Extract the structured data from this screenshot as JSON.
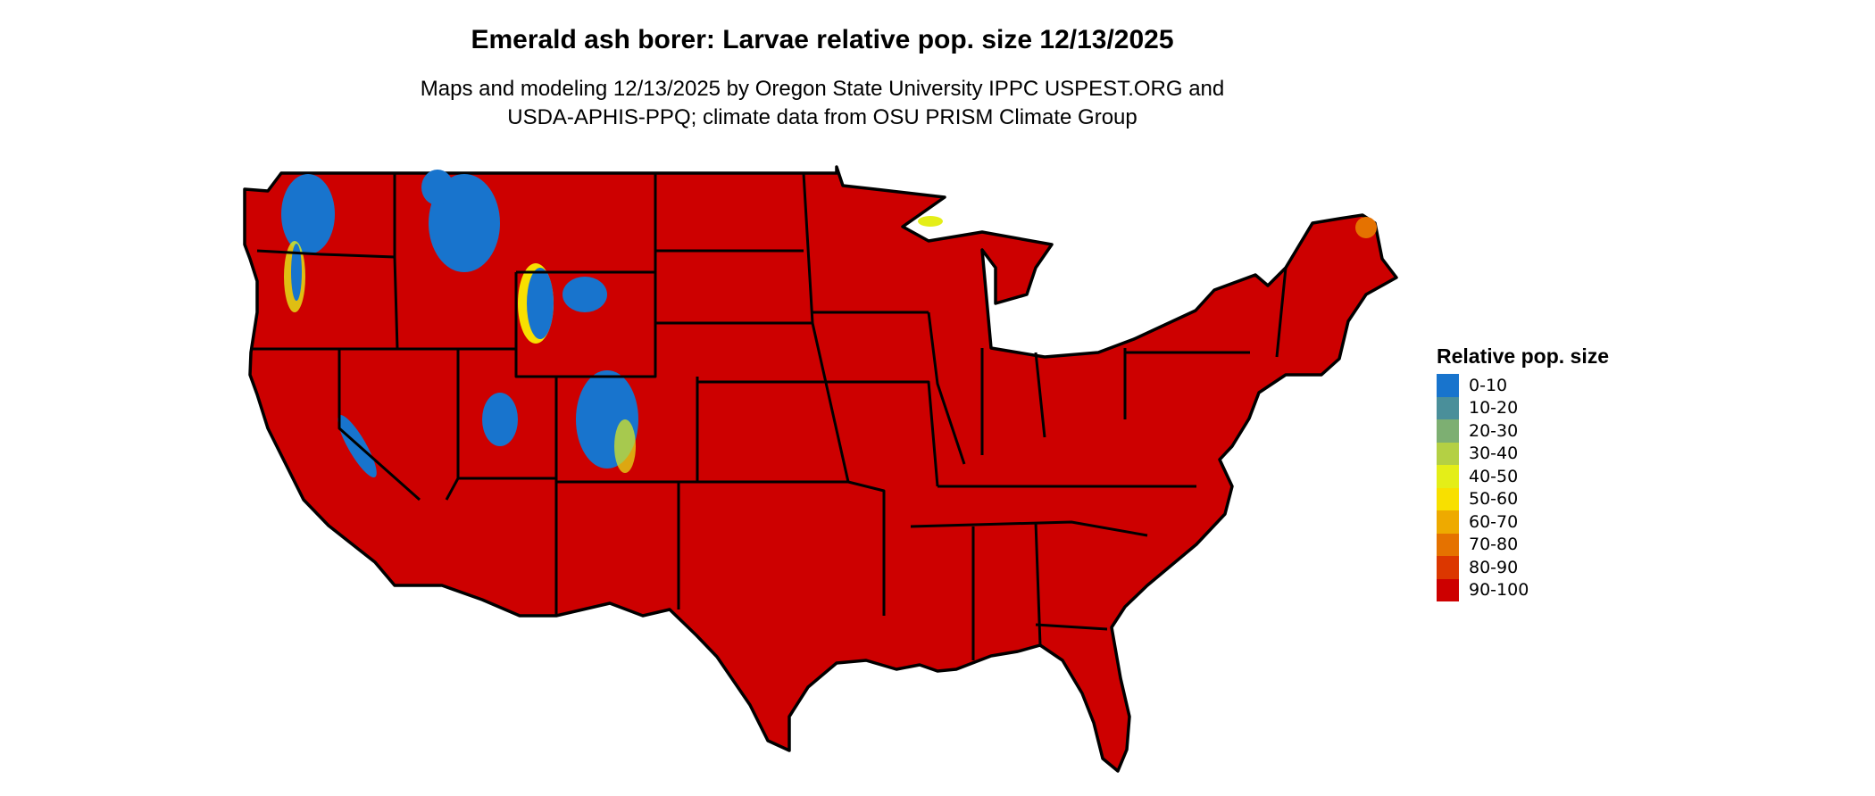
{
  "title": "Emerald ash borer: Larvae relative pop. size 12/13/2025",
  "subtitle_line1": "Maps and modeling 12/13/2025 by Oregon State University IPPC USPEST.ORG and",
  "subtitle_line2": "USDA-APHIS-PPQ; climate data from OSU PRISM Climate Group",
  "legend": {
    "title": "Relative pop. size",
    "items": [
      {
        "label": "0-10",
        "color": "#1874CD"
      },
      {
        "label": "10-20",
        "color": "#4A8F9A"
      },
      {
        "label": "20-30",
        "color": "#7DAF72"
      },
      {
        "label": "30-40",
        "color": "#B4D044"
      },
      {
        "label": "40-50",
        "color": "#E4EE18"
      },
      {
        "label": "50-60",
        "color": "#F8E000"
      },
      {
        "label": "60-70",
        "color": "#EEAA00"
      },
      {
        "label": "70-80",
        "color": "#E57200"
      },
      {
        "label": "80-90",
        "color": "#DC3700"
      },
      {
        "label": "90-100",
        "color": "#CD0000"
      }
    ]
  },
  "map": {
    "region": "Conterminous United States",
    "dominant_class": "90-100",
    "low_value_regions": "western mountains (Cascades, Sierra Nevada, Rockies, Idaho/Montana ranges)"
  }
}
